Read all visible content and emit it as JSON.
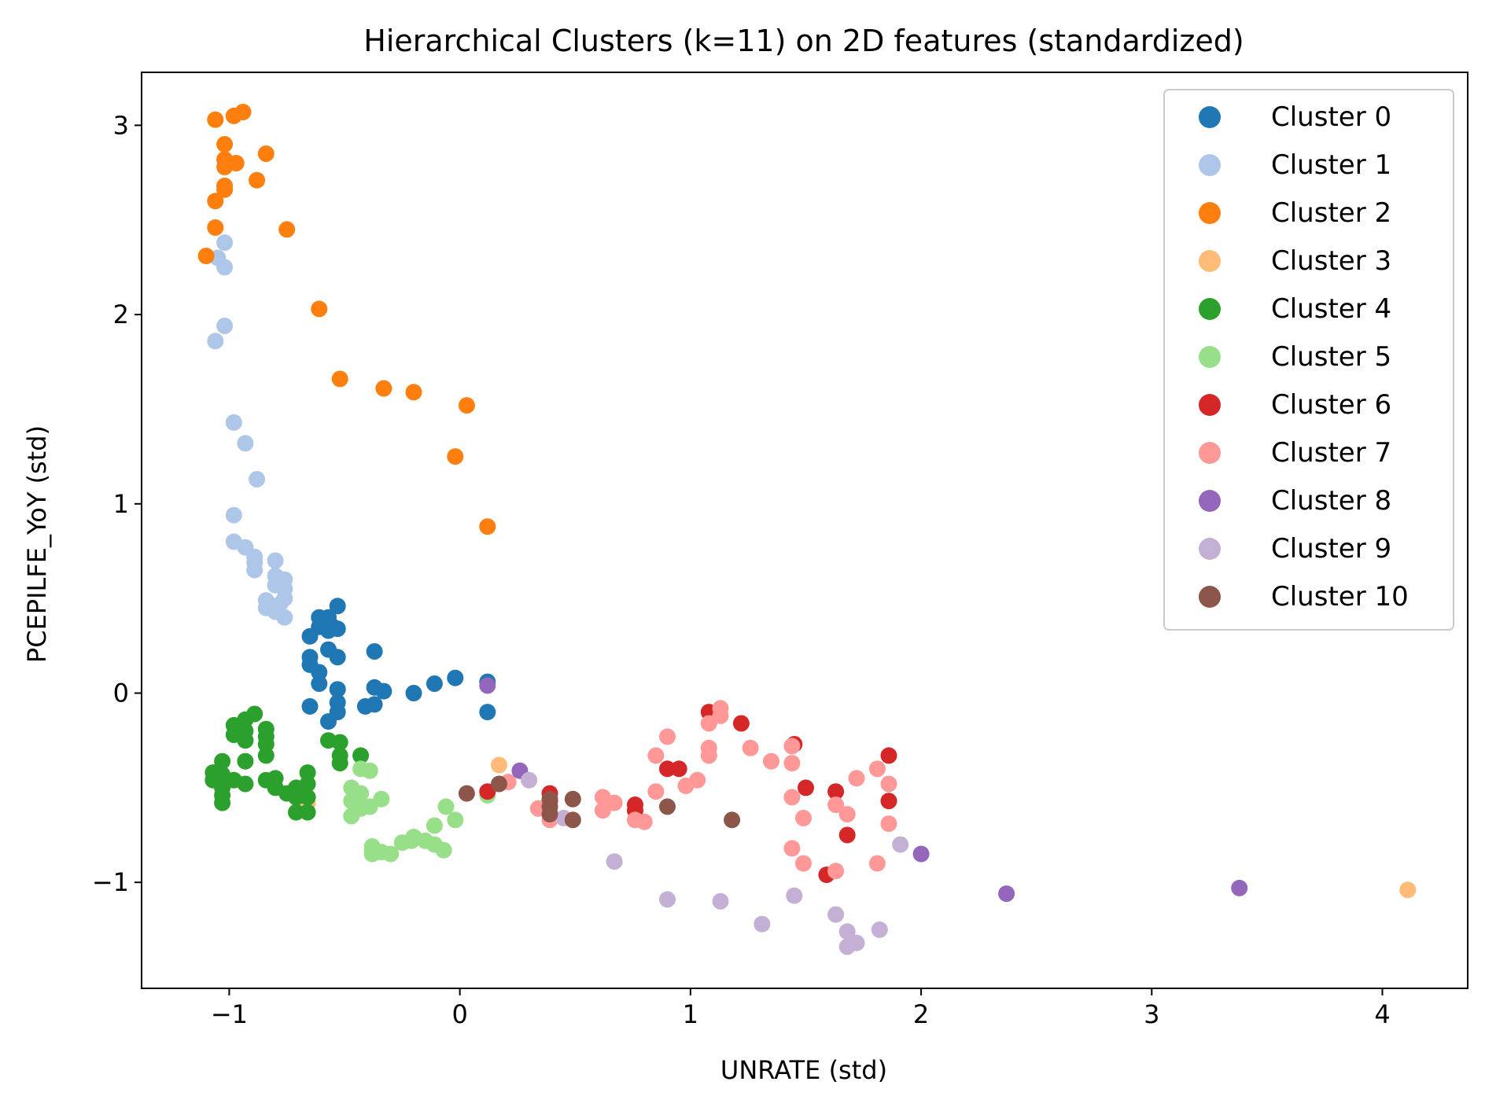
{
  "chart_data": {
    "type": "scatter",
    "title": "Hierarchical Clusters (k=11) on 2D features (standardized)",
    "xlabel": "UNRATE (std)",
    "ylabel": "PCEPILFE_YoY (std)",
    "xlim": [
      -1.38,
      4.37
    ],
    "ylim": [
      -1.56,
      3.28
    ],
    "xticks": [
      -1,
      0,
      1,
      2,
      3,
      4
    ],
    "xtick_labels": [
      "−1",
      "0",
      "1",
      "2",
      "3",
      "4"
    ],
    "yticks": [
      -1,
      0,
      1,
      2,
      3
    ],
    "ytick_labels": [
      "−1",
      "0",
      "1",
      "2",
      "3"
    ],
    "grid": false,
    "legend_position": "top-right",
    "series": [
      {
        "name": "Cluster 0",
        "color": "#1f77b4",
        "points": [
          [
            -0.65,
            0.3
          ],
          [
            -0.61,
            0.35
          ],
          [
            -0.61,
            0.4
          ],
          [
            -0.57,
            0.4
          ],
          [
            -0.53,
            0.46
          ],
          [
            -0.57,
            0.33
          ],
          [
            -0.55,
            0.35
          ],
          [
            -0.53,
            0.34
          ],
          [
            -0.65,
            0.19
          ],
          [
            -0.65,
            0.15
          ],
          [
            -0.61,
            0.11
          ],
          [
            -0.61,
            0.05
          ],
          [
            -0.57,
            0.23
          ],
          [
            -0.53,
            0.19
          ],
          [
            -0.53,
            0.02
          ],
          [
            -0.53,
            -0.05
          ],
          [
            -0.53,
            -0.1
          ],
          [
            -0.57,
            -0.15
          ],
          [
            -0.65,
            -0.07
          ],
          [
            -0.41,
            -0.07
          ],
          [
            -0.37,
            -0.06
          ],
          [
            -0.37,
            0.03
          ],
          [
            -0.33,
            0.01
          ],
          [
            -0.37,
            0.22
          ],
          [
            -0.2,
            0.0
          ],
          [
            -0.11,
            0.05
          ],
          [
            -0.02,
            0.08
          ],
          [
            0.12,
            0.06
          ],
          [
            0.12,
            -0.1
          ]
        ]
      },
      {
        "name": "Cluster 1",
        "color": "#aec7e8",
        "points": [
          [
            -1.05,
            2.3
          ],
          [
            -1.02,
            2.38
          ],
          [
            -1.02,
            2.25
          ],
          [
            -1.02,
            1.94
          ],
          [
            -1.06,
            1.86
          ],
          [
            -0.98,
            1.43
          ],
          [
            -0.93,
            1.32
          ],
          [
            -0.88,
            1.13
          ],
          [
            -0.98,
            0.94
          ],
          [
            -0.98,
            0.8
          ],
          [
            -0.93,
            0.77
          ],
          [
            -0.89,
            0.72
          ],
          [
            -0.89,
            0.69
          ],
          [
            -0.89,
            0.65
          ],
          [
            -0.8,
            0.7
          ],
          [
            -0.8,
            0.62
          ],
          [
            -0.8,
            0.57
          ],
          [
            -0.76,
            0.6
          ],
          [
            -0.76,
            0.55
          ],
          [
            -0.76,
            0.5
          ],
          [
            -0.78,
            0.47
          ],
          [
            -0.84,
            0.49
          ],
          [
            -0.84,
            0.45
          ],
          [
            -0.8,
            0.43
          ],
          [
            -0.76,
            0.4
          ]
        ]
      },
      {
        "name": "Cluster 2",
        "color": "#ff7f0e",
        "points": [
          [
            -1.06,
            3.03
          ],
          [
            -0.98,
            3.05
          ],
          [
            -0.94,
            3.07
          ],
          [
            -1.02,
            2.9
          ],
          [
            -1.02,
            2.82
          ],
          [
            -1.02,
            2.78
          ],
          [
            -0.97,
            2.8
          ],
          [
            -0.84,
            2.85
          ],
          [
            -0.88,
            2.71
          ],
          [
            -1.02,
            2.68
          ],
          [
            -1.02,
            2.66
          ],
          [
            -1.06,
            2.6
          ],
          [
            -1.06,
            2.46
          ],
          [
            -0.75,
            2.45
          ],
          [
            -1.1,
            2.31
          ],
          [
            -0.61,
            2.03
          ],
          [
            -0.52,
            1.66
          ],
          [
            -0.33,
            1.61
          ],
          [
            -0.2,
            1.59
          ],
          [
            0.03,
            1.52
          ],
          [
            -0.02,
            1.25
          ],
          [
            0.12,
            0.88
          ]
        ]
      },
      {
        "name": "Cluster 3",
        "color": "#ffbb78",
        "points": [
          [
            0.17,
            -0.38
          ],
          [
            4.11,
            -1.04
          ],
          [
            -0.66,
            -0.58
          ]
        ]
      },
      {
        "name": "Cluster 4",
        "color": "#2ca02c",
        "points": [
          [
            -0.98,
            -0.17
          ],
          [
            -0.93,
            -0.14
          ],
          [
            -0.89,
            -0.11
          ],
          [
            -0.93,
            -0.2
          ],
          [
            -0.93,
            -0.25
          ],
          [
            -0.84,
            -0.19
          ],
          [
            -0.84,
            -0.23
          ],
          [
            -0.84,
            -0.27
          ],
          [
            -0.84,
            -0.33
          ],
          [
            -0.98,
            -0.22
          ],
          [
            -1.07,
            -0.42
          ],
          [
            -1.07,
            -0.46
          ],
          [
            -1.03,
            -0.36
          ],
          [
            -1.03,
            -0.43
          ],
          [
            -1.03,
            -0.5
          ],
          [
            -1.03,
            -0.54
          ],
          [
            -1.03,
            -0.58
          ],
          [
            -0.98,
            -0.46
          ],
          [
            -0.93,
            -0.36
          ],
          [
            -0.93,
            -0.48
          ],
          [
            -0.84,
            -0.46
          ],
          [
            -0.8,
            -0.45
          ],
          [
            -0.8,
            -0.5
          ],
          [
            -0.75,
            -0.53
          ],
          [
            -0.71,
            -0.55
          ],
          [
            -0.71,
            -0.63
          ],
          [
            -0.66,
            -0.63
          ],
          [
            -0.66,
            -0.55
          ],
          [
            -0.66,
            -0.48
          ],
          [
            -0.66,
            -0.42
          ],
          [
            -0.71,
            -0.5
          ],
          [
            -0.57,
            -0.25
          ],
          [
            -0.52,
            -0.26
          ],
          [
            -0.52,
            -0.33
          ],
          [
            -0.52,
            -0.37
          ],
          [
            -0.43,
            -0.33
          ]
        ]
      },
      {
        "name": "Cluster 5",
        "color": "#98df8a",
        "points": [
          [
            -0.43,
            -0.4
          ],
          [
            -0.39,
            -0.41
          ],
          [
            -0.47,
            -0.5
          ],
          [
            -0.43,
            -0.53
          ],
          [
            -0.47,
            -0.57
          ],
          [
            -0.43,
            -0.61
          ],
          [
            -0.39,
            -0.6
          ],
          [
            -0.34,
            -0.56
          ],
          [
            -0.47,
            -0.65
          ],
          [
            -0.38,
            -0.81
          ],
          [
            -0.38,
            -0.85
          ],
          [
            -0.34,
            -0.84
          ],
          [
            -0.3,
            -0.85
          ],
          [
            -0.25,
            -0.79
          ],
          [
            -0.2,
            -0.76
          ],
          [
            -0.15,
            -0.78
          ],
          [
            -0.11,
            -0.8
          ],
          [
            -0.07,
            -0.83
          ],
          [
            -0.11,
            -0.7
          ],
          [
            -0.06,
            -0.6
          ],
          [
            -0.02,
            -0.67
          ],
          [
            0.12,
            -0.54
          ],
          [
            -0.21,
            -0.78
          ],
          [
            -0.38,
            -0.83
          ]
        ]
      },
      {
        "name": "Cluster 6",
        "color": "#d62728",
        "points": [
          [
            0.12,
            -0.52
          ],
          [
            0.39,
            -0.53
          ],
          [
            0.39,
            -0.57
          ],
          [
            0.76,
            -0.59
          ],
          [
            0.76,
            -0.62
          ],
          [
            0.9,
            -0.4
          ],
          [
            0.95,
            -0.4
          ],
          [
            1.08,
            -0.1
          ],
          [
            1.22,
            -0.16
          ],
          [
            1.45,
            -0.27
          ],
          [
            1.5,
            -0.5
          ],
          [
            1.63,
            -0.52
          ],
          [
            1.68,
            -0.75
          ],
          [
            1.59,
            -0.96
          ],
          [
            1.86,
            -0.33
          ],
          [
            1.86,
            -0.57
          ]
        ]
      },
      {
        "name": "Cluster 7",
        "color": "#ff9896",
        "points": [
          [
            0.21,
            -0.47
          ],
          [
            0.34,
            -0.61
          ],
          [
            0.39,
            -0.63
          ],
          [
            0.39,
            -0.67
          ],
          [
            0.62,
            -0.55
          ],
          [
            0.62,
            -0.62
          ],
          [
            0.67,
            -0.58
          ],
          [
            0.76,
            -0.67
          ],
          [
            0.8,
            -0.68
          ],
          [
            0.85,
            -0.33
          ],
          [
            0.85,
            -0.52
          ],
          [
            0.9,
            -0.23
          ],
          [
            0.98,
            -0.49
          ],
          [
            1.03,
            -0.46
          ],
          [
            1.08,
            -0.29
          ],
          [
            1.08,
            -0.33
          ],
          [
            1.08,
            -0.16
          ],
          [
            1.13,
            -0.08
          ],
          [
            1.13,
            -0.12
          ],
          [
            1.26,
            -0.29
          ],
          [
            1.35,
            -0.36
          ],
          [
            1.44,
            -0.28
          ],
          [
            1.44,
            -0.37
          ],
          [
            1.44,
            -0.55
          ],
          [
            1.44,
            -0.82
          ],
          [
            1.49,
            -0.66
          ],
          [
            1.49,
            -0.9
          ],
          [
            1.63,
            -0.59
          ],
          [
            1.63,
            -0.94
          ],
          [
            1.68,
            -0.64
          ],
          [
            1.72,
            -0.45
          ],
          [
            1.81,
            -0.4
          ],
          [
            1.81,
            -0.9
          ],
          [
            1.86,
            -0.48
          ],
          [
            1.86,
            -0.69
          ]
        ]
      },
      {
        "name": "Cluster 8",
        "color": "#9467bd",
        "points": [
          [
            0.12,
            0.04
          ],
          [
            0.26,
            -0.41
          ],
          [
            2.0,
            -0.85
          ],
          [
            2.37,
            -1.06
          ],
          [
            3.38,
            -1.03
          ]
        ]
      },
      {
        "name": "Cluster 9",
        "color": "#c5b0d5",
        "points": [
          [
            0.3,
            -0.46
          ],
          [
            0.45,
            -0.66
          ],
          [
            0.67,
            -0.89
          ],
          [
            0.9,
            -1.09
          ],
          [
            1.13,
            -1.1
          ],
          [
            1.31,
            -1.22
          ],
          [
            1.45,
            -1.07
          ],
          [
            1.63,
            -1.17
          ],
          [
            1.68,
            -1.26
          ],
          [
            1.68,
            -1.34
          ],
          [
            1.72,
            -1.32
          ],
          [
            1.82,
            -1.25
          ],
          [
            1.91,
            -0.8
          ]
        ]
      },
      {
        "name": "Cluster 10",
        "color": "#8c564b",
        "points": [
          [
            0.03,
            -0.53
          ],
          [
            0.17,
            -0.48
          ],
          [
            0.39,
            -0.56
          ],
          [
            0.39,
            -0.6
          ],
          [
            0.39,
            -0.64
          ],
          [
            0.49,
            -0.56
          ],
          [
            0.49,
            -0.67
          ],
          [
            0.9,
            -0.6
          ],
          [
            1.18,
            -0.67
          ]
        ]
      }
    ]
  }
}
